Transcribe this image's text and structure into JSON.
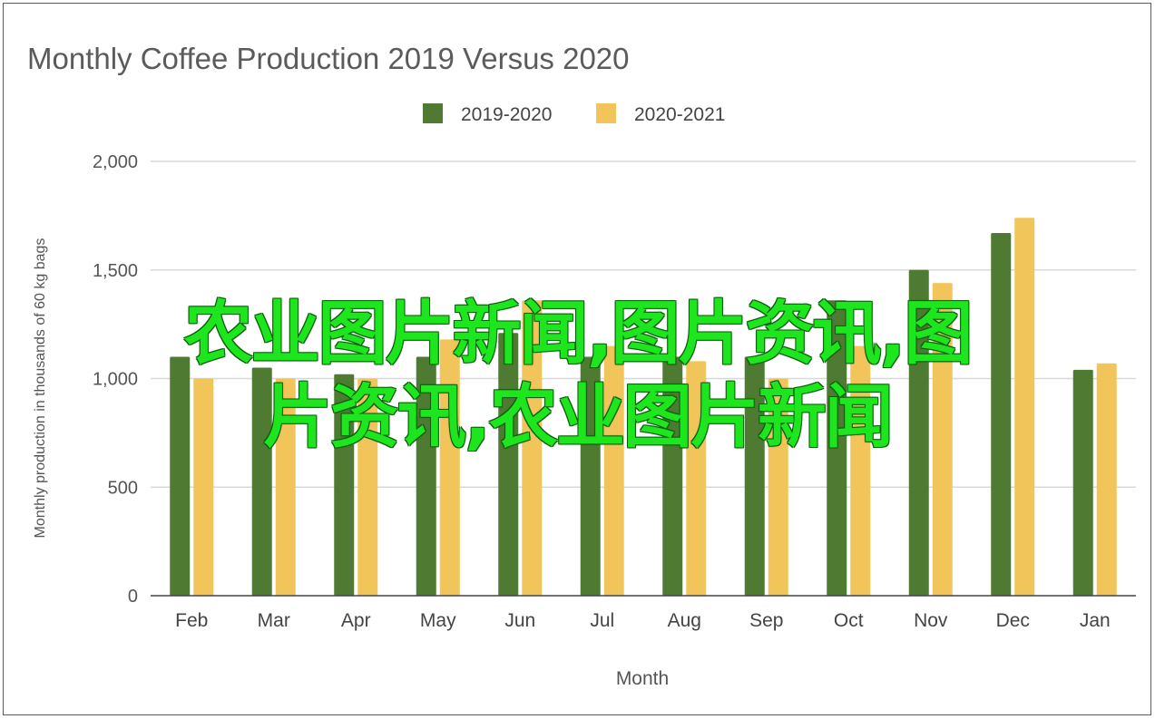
{
  "chart_data": {
    "type": "bar",
    "title": "Monthly Coffee Production 2019 Versus 2020",
    "xlabel": "Month",
    "ylabel": "Monthly production in thousands of 60 kg bags",
    "categories": [
      "Feb",
      "Mar",
      "Apr",
      "May",
      "Jun",
      "Jul",
      "Aug",
      "Sep",
      "Oct",
      "Nov",
      "Dec",
      "Jan"
    ],
    "series": [
      {
        "name": "2019-2020",
        "color": "#4e7a32",
        "values": [
          1100,
          1050,
          1020,
          1100,
          1210,
          1100,
          1100,
          1100,
          1360,
          1500,
          1670,
          1040
        ]
      },
      {
        "name": "2020-2021",
        "color": "#f2c55a",
        "values": [
          1000,
          1000,
          1000,
          1180,
          1360,
          1150,
          1080,
          1000,
          1150,
          1440,
          1740,
          1070
        ]
      }
    ],
    "ylim": [
      0,
      2000
    ],
    "yticks": [
      0,
      500,
      1000,
      1500,
      2000
    ],
    "ytick_labels": [
      "0",
      "500",
      "1,000",
      "1,500",
      "2,000"
    ],
    "grid": true,
    "legend_position": "top-center"
  },
  "overlay": {
    "line1": "农业图片新闻,图片资讯,图",
    "line2": "片资讯,农业图片新闻",
    "color": "#1ee61e"
  }
}
